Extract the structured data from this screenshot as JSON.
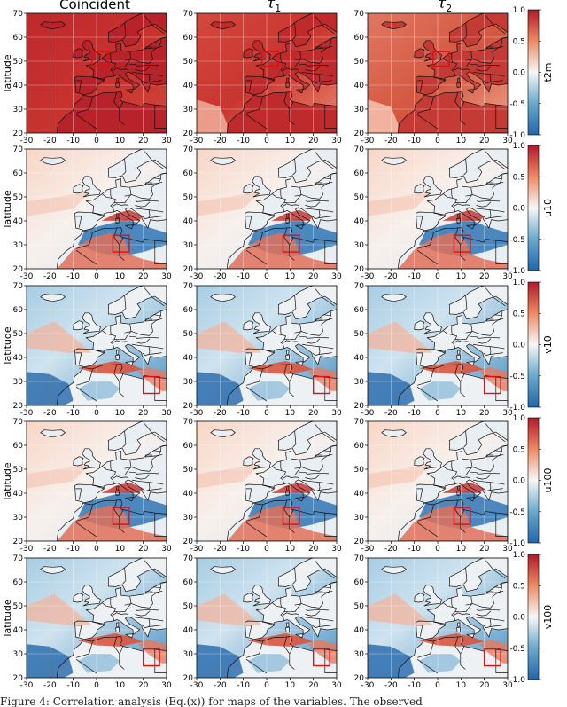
{
  "figure": {
    "caption": "Figure 4: Correlation analysis (Eq.(x)) for maps of the variables. The observed"
  },
  "chart_data": {
    "type": "heatmap",
    "columns": [
      {
        "name": "Coincident",
        "symbol": "",
        "sub": ""
      },
      {
        "name": "",
        "symbol": "τ",
        "sub": "1"
      },
      {
        "name": "",
        "symbol": "τ",
        "sub": "2"
      }
    ],
    "rows": [
      {
        "variable": "t2m",
        "pattern": "warm",
        "box": [
          -2,
          5,
          48,
          54
        ]
      },
      {
        "variable": "u10",
        "pattern": "wind_u",
        "box": [
          7,
          14,
          27,
          34
        ]
      },
      {
        "variable": "v10",
        "pattern": "wind_v",
        "box": [
          20,
          27,
          25,
          32
        ]
      },
      {
        "variable": "u100",
        "pattern": "wind_u",
        "box": [
          7,
          14,
          27,
          34
        ]
      },
      {
        "variable": "v100",
        "pattern": "wind_v",
        "box": [
          20,
          27,
          25,
          32
        ]
      }
    ],
    "ylabel": "latitude",
    "xlim": [
      -30,
      30
    ],
    "ylim": [
      20,
      70
    ],
    "xticks": [
      -30,
      -20,
      -10,
      0,
      10,
      20,
      30
    ],
    "yticks": [
      20,
      30,
      40,
      50,
      60,
      70
    ],
    "colorbar": {
      "ticks": [
        -1.0,
        -0.5,
        0.0,
        0.5,
        1.0
      ],
      "labels": [
        "-1.0",
        "-0.5",
        "0.0",
        "0.5",
        "1.0"
      ],
      "cmap": "RdBu_r"
    },
    "grid": true,
    "box_color": "#dd1111"
  }
}
